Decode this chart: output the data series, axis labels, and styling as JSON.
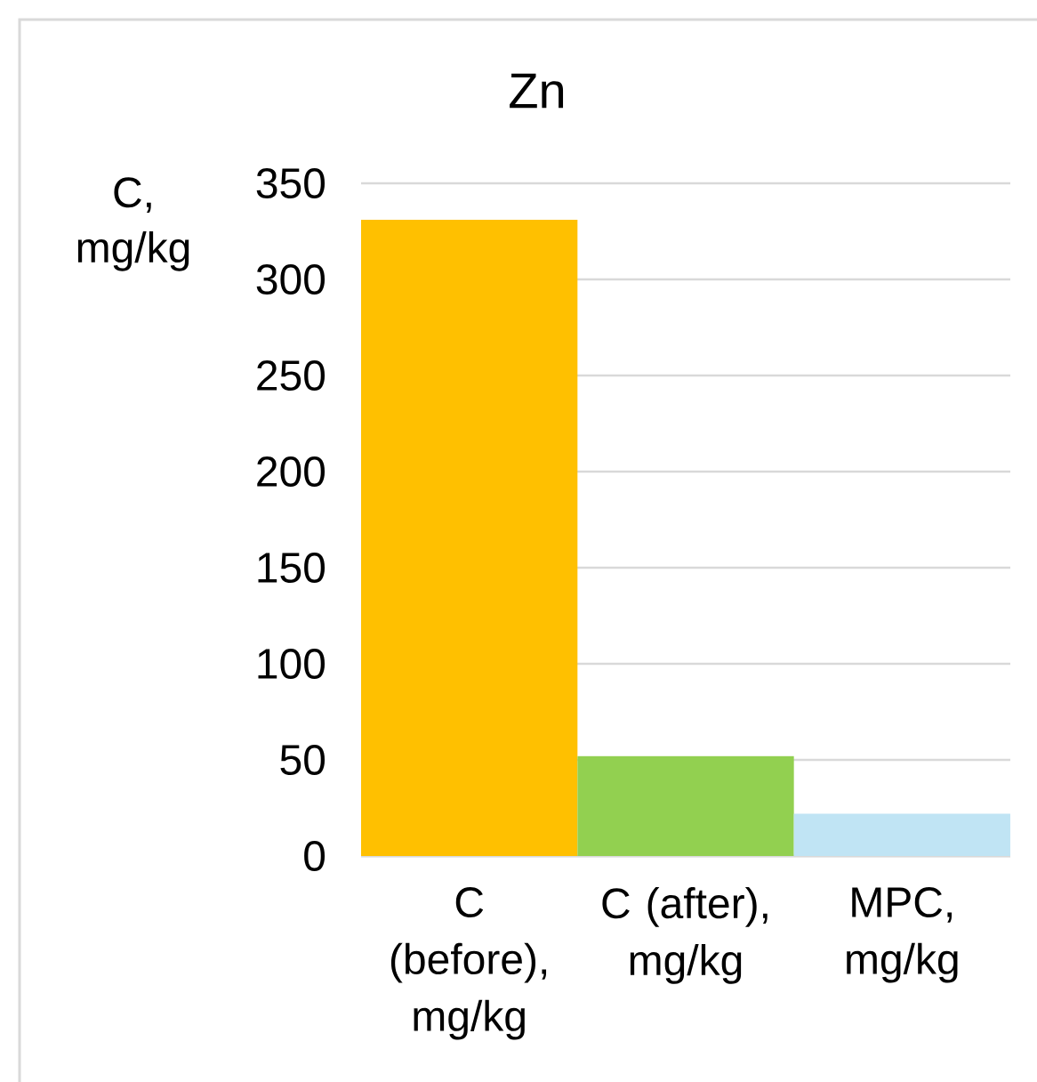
{
  "chart_data": {
    "type": "bar",
    "title": "Zn",
    "ylabel": "C, mg/kg",
    "categories": [
      "C (before), mg/kg",
      "C (after), mg/kg",
      "MPC, mg/kg"
    ],
    "values": [
      331,
      52,
      22
    ],
    "colors": [
      "#ffc000",
      "#92d050",
      "#c0e4f4"
    ],
    "ylim": [
      0,
      350
    ],
    "yticks": [
      0,
      50,
      100,
      150,
      200,
      250,
      300,
      350
    ],
    "grid": "y"
  }
}
